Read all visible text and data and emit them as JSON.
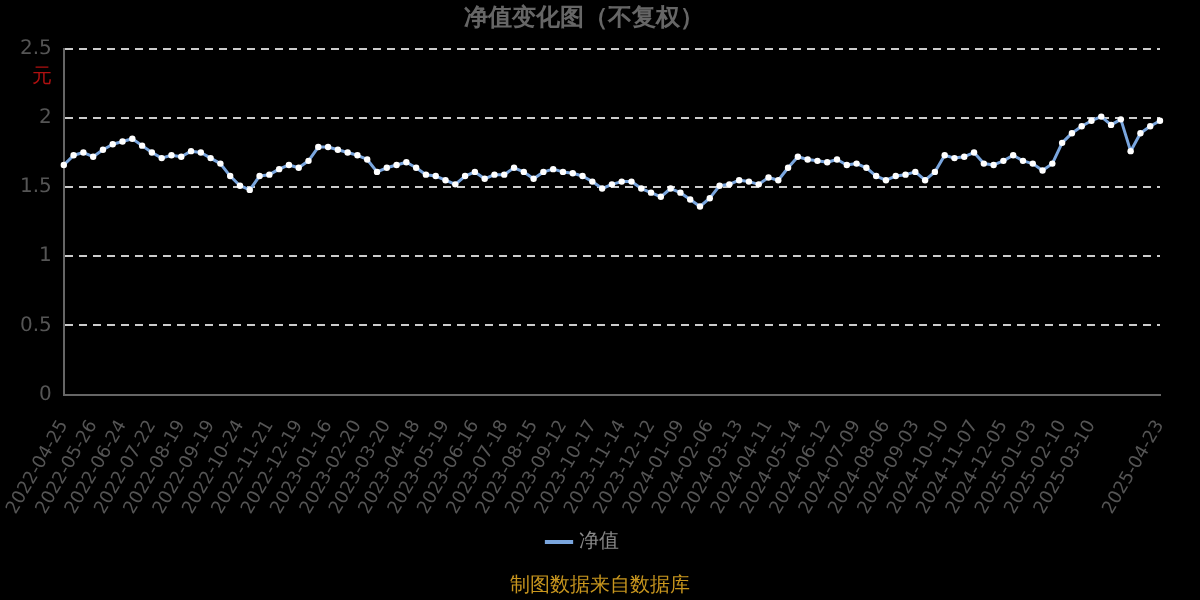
{
  "chart_data": {
    "type": "line",
    "title": "净值变化图（不复权）",
    "ylabel": "元",
    "annotations": [
      "制图数据来自数据库"
    ],
    "categories": [
      "2022-04-25",
      null,
      null,
      "2022-05-26",
      null,
      null,
      "2022-06-24",
      null,
      null,
      "2022-07-22",
      null,
      null,
      "2022-08-19",
      null,
      null,
      "2022-09-19",
      null,
      null,
      "2022-10-24",
      null,
      null,
      "2022-11-21",
      null,
      null,
      "2022-12-19",
      null,
      null,
      "2023-01-16",
      null,
      null,
      "2023-02-20",
      null,
      null,
      "2023-03-20",
      null,
      null,
      "2023-04-18",
      null,
      null,
      "2023-05-19",
      null,
      null,
      "2023-06-16",
      null,
      null,
      "2023-07-18",
      null,
      null,
      "2023-08-15",
      null,
      null,
      "2023-09-12",
      null,
      null,
      "2023-10-17",
      null,
      null,
      "2023-11-14",
      null,
      null,
      "2023-12-12",
      null,
      null,
      "2024-01-09",
      null,
      null,
      "2024-02-06",
      null,
      null,
      "2024-03-13",
      null,
      null,
      "2024-04-11",
      null,
      null,
      "2024-05-14",
      null,
      null,
      "2024-06-12",
      null,
      null,
      "2024-07-09",
      null,
      null,
      "2024-08-06",
      null,
      null,
      "2024-09-03",
      null,
      null,
      "2024-10-10",
      null,
      null,
      "2024-11-07",
      null,
      null,
      "2024-12-05",
      null,
      null,
      "2025-01-03",
      null,
      null,
      "2025-02-10",
      null,
      null,
      "2025-03-10",
      null,
      null,
      null,
      null,
      null,
      null,
      "2025-04-23"
    ],
    "series": [
      {
        "name": "净值",
        "color": "#7aa6de",
        "values": [
          1.66,
          1.73,
          1.75,
          1.72,
          1.77,
          1.81,
          1.83,
          1.85,
          1.8,
          1.75,
          1.71,
          1.73,
          1.72,
          1.76,
          1.75,
          1.71,
          1.67,
          1.58,
          1.51,
          1.48,
          1.58,
          1.59,
          1.63,
          1.66,
          1.64,
          1.69,
          1.79,
          1.79,
          1.77,
          1.75,
          1.73,
          1.7,
          1.61,
          1.64,
          1.66,
          1.68,
          1.64,
          1.59,
          1.58,
          1.55,
          1.52,
          1.58,
          1.61,
          1.56,
          1.59,
          1.59,
          1.64,
          1.61,
          1.56,
          1.61,
          1.63,
          1.61,
          1.6,
          1.58,
          1.54,
          1.49,
          1.52,
          1.54,
          1.54,
          1.49,
          1.46,
          1.43,
          1.49,
          1.46,
          1.41,
          1.36,
          1.42,
          1.51,
          1.52,
          1.55,
          1.54,
          1.52,
          1.57,
          1.55,
          1.64,
          1.72,
          1.7,
          1.69,
          1.68,
          1.7,
          1.66,
          1.67,
          1.64,
          1.58,
          1.55,
          1.58,
          1.59,
          1.61,
          1.55,
          1.61,
          1.73,
          1.71,
          1.72,
          1.75,
          1.67,
          1.66,
          1.69,
          1.73,
          1.69,
          1.67,
          1.62,
          1.67,
          1.82,
          1.89,
          1.94,
          1.98,
          2.01,
          1.95,
          1.99,
          1.76,
          1.89,
          1.94,
          1.98
        ]
      }
    ],
    "ylim": [
      0,
      2.5
    ],
    "yticks": [
      0,
      0.5,
      1,
      1.5,
      2,
      2.5
    ],
    "grid": "y",
    "legend": "bottom",
    "marker": "circle",
    "line_style": "solid"
  }
}
